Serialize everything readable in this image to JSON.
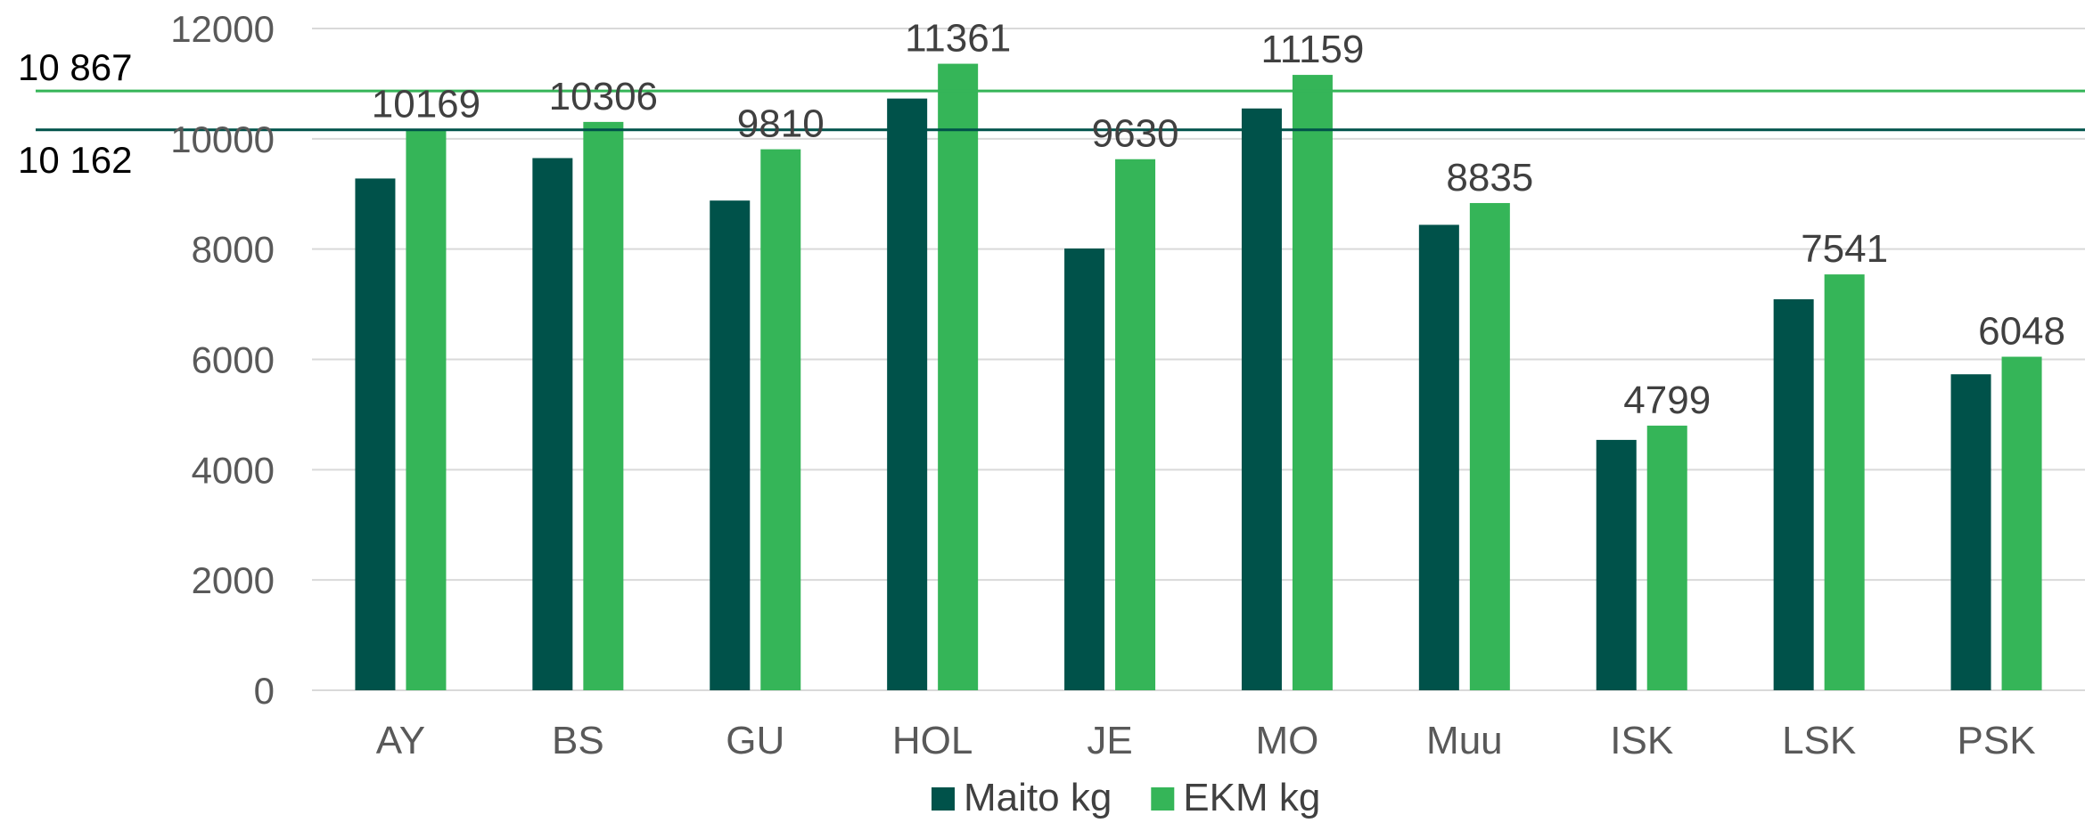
{
  "chart_data": {
    "type": "bar",
    "categories": [
      "AY",
      "BS",
      "GU",
      "HOL",
      "JE",
      "MO",
      "Muu",
      "ISK",
      "LSK",
      "PSK"
    ],
    "series": [
      {
        "name": "Maito kg",
        "color": "#00524a",
        "values": [
          9280,
          9650,
          8880,
          10730,
          8010,
          10550,
          8440,
          4540,
          7090,
          5730
        ],
        "labels": [
          null,
          null,
          null,
          null,
          null,
          null,
          null,
          null,
          null,
          null
        ]
      },
      {
        "name": "EKM kg",
        "color": "#35b558",
        "values": [
          10169,
          10306,
          9810,
          11361,
          9630,
          11159,
          8835,
          4799,
          7541,
          6048
        ],
        "labels": [
          "10169",
          "10306",
          "9810",
          "11361",
          "9630",
          "11159",
          "8835",
          "4799",
          "7541",
          "6048"
        ]
      }
    ],
    "reference_lines": [
      {
        "value": 10867,
        "label": "10 867",
        "color": "#35b558"
      },
      {
        "value": 10162,
        "label": "10 162",
        "color": "#00524a"
      }
    ],
    "yticks": [
      "0",
      "2000",
      "4000",
      "6000",
      "8000",
      "10000",
      "12000"
    ],
    "ylim": [
      0,
      12000
    ],
    "grid": true,
    "legend": "bottom"
  }
}
